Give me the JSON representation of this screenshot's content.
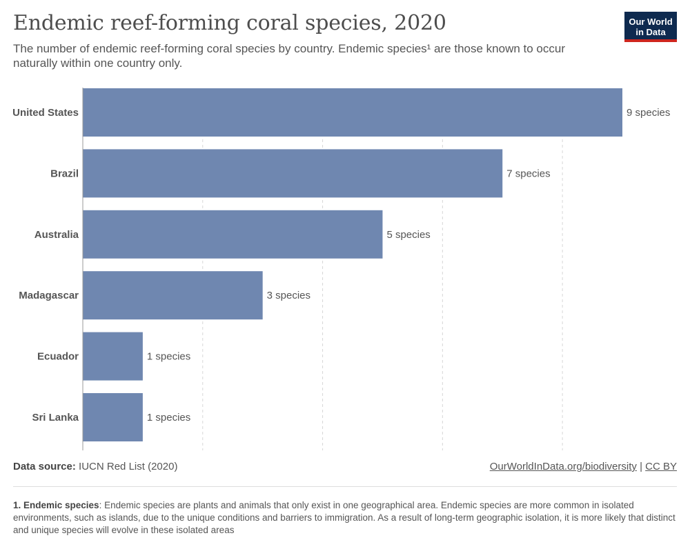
{
  "header": {
    "title": "Endemic reef-forming coral species, 2020",
    "subtitle": "The number of endemic reef-forming coral species by country. Endemic species¹ are those known to occur naturally within one country only.",
    "logo_line1": "Our World",
    "logo_line2": "in Data"
  },
  "colors": {
    "bar": "#6f87b0",
    "logo_bg": "#0e2a4f",
    "logo_accent": "#ce261e"
  },
  "chart_data": {
    "type": "bar",
    "orientation": "horizontal",
    "categories": [
      "United States",
      "Brazil",
      "Australia",
      "Madagascar",
      "Ecuador",
      "Sri Lanka"
    ],
    "values": [
      9,
      7,
      5,
      3,
      1,
      1
    ],
    "value_labels": [
      "9 species",
      "7 species",
      "5 species",
      "3 species",
      "1 species",
      "1 species"
    ],
    "xlim": [
      0,
      9
    ],
    "grid": true,
    "grid_values": [
      2,
      4,
      6,
      8
    ]
  },
  "footer": {
    "source_label": "Data source:",
    "source_value": "IUCN Red List (2020)",
    "link_text": "OurWorldInData.org/biodiversity",
    "separator": "|",
    "license": "CC BY"
  },
  "note": {
    "term": "1. Endemic species",
    "text": ": Endemic species are plants and animals that only exist in one geographical area. Endemic species are more common in isolated environments, such as islands, due to the unique conditions and barriers to immigration. As a result of long-term geographic isolation, it is more likely that distinct and unique species will evolve in these isolated areas"
  }
}
